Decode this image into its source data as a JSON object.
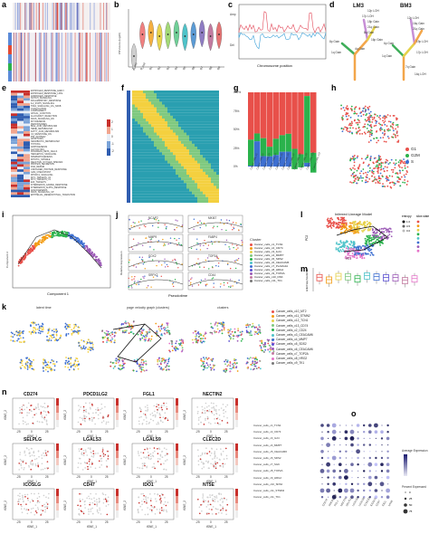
{
  "panels": {
    "a": {
      "letter": "a"
    },
    "b": {
      "letter": "b",
      "ylabel": "CNVscore (log10)",
      "x_labels": [
        "T_cell",
        "B_cell",
        "B1",
        "B2",
        "B3",
        "B4",
        "B5",
        "B6",
        "B7",
        "B8",
        "B9"
      ]
    },
    "c": {
      "letter": "c",
      "amp_label": "Amp",
      "del_label": "Del",
      "xlabel": "Chromosome position"
    },
    "d": {
      "letter": "d",
      "titles": [
        "LM3",
        "BM3"
      ],
      "lm3_events": [
        "1q Gain",
        "8p Gain",
        "16p Gain",
        "4q Gain",
        "17p LOH",
        "18p Gain",
        "12p LOH",
        "21q Gain",
        "8q Gain"
      ],
      "bm3_events": [
        "1q Gain",
        "6p Gain",
        "19p LOH",
        "7q Gain",
        "12p LOH",
        "16q Gain",
        "21q Gain",
        "17p LOH",
        "14q LOH"
      ]
    },
    "e": {
      "letter": "e",
      "rows": [
        "ESTROGEN_RESPONSE_EARLY",
        "ESTROGEN_RESPONSE_LATE",
        "ANDROGEN_RESPONSE",
        "NOTCH_SIGNALING",
        "INFLAMMATORY_RESPONSE",
        "IL2_STAT5_SIGNALING",
        "TNFA_SIGNALING_VIA_NFKB",
        "COAGULATION",
        "COMPLEMENT",
        "APICAL_JUNCTION",
        "ALLOGRAFT_REJECTION",
        "KRAS_SIGNALING_DN",
        "MYOGENESIS",
        "PEROXISOMES",
        "BILE_ACID_METABOLISM",
        "HEME_METABOLISM",
        "FATTY_ACID_METABOLISM",
        "UV_RESPONSE_DN",
        "P53_PATHWAY",
        "APOPTOSIS",
        "XENOBIOTIC_METABOLISM",
        "HYPOXIA",
        "ADIPOGENESIS",
        "GLYCOLYSIS",
        "PANCREAS_BETA_CELLS",
        "HEDGEHOG_SIGNALING",
        "SPERMATOGENESIS",
        "MITOTIC_SPINDLE",
        "REACTIVE_OXYGEN_SPECIES",
        "PROTEIN_SECRETION",
        "DNA_REPAIR",
        "UNFOLDED_PROTEIN_RESPONSE",
        "G2M_CHECKPOINT",
        "MTORC1_SIGNALING",
        "MYC_TARGETS_V2",
        "MYC_TARGETS_V1",
        "E2F_TARGETS",
        "INTERFERON_GAMMA_RESPONSE",
        "INTERFERON_ALPHA_RESPONSE",
        "ANGIOGENESIS",
        "KRAS_SIGNALING_UP",
        "EPITHELIAL_MESENCHYMAL_TRANSITION"
      ],
      "scale": [
        "2",
        "1",
        "0",
        "-1",
        "-2"
      ]
    },
    "f": {
      "letter": "f"
    },
    "g": {
      "letter": "g",
      "y_ticks": [
        "100%",
        "75%",
        "50%",
        "25%",
        "0%"
      ],
      "categories": [
        "Cancer_cells_c1",
        "Cancer_cells_c2",
        "Cancer_cells_c3",
        "Cancer_cells_c4",
        "Cancer_cells_c5",
        "Cancer_cells_c6",
        "Cancer_cells_c7",
        "Cancer_cells_c8",
        "Cancer_cells_c9",
        "Cancer_cells_c10",
        "Cancer_cells_c11"
      ]
    },
    "h": {
      "letter": "h",
      "legend": [
        {
          "name": "G1",
          "color": "#e8504a"
        },
        {
          "name": "G2M",
          "color": "#2ab24c"
        },
        {
          "name": "S",
          "color": "#3d6fd1"
        }
      ]
    },
    "i": {
      "letter": "i",
      "xlabel": "Component 1",
      "ylabel": "Component 2"
    },
    "j": {
      "letter": "j",
      "genes": [
        "NCAP2",
        "MKI67",
        "MMP9",
        "FABP4",
        "SOX2",
        "TOP2A",
        "SRPX2",
        "CD44"
      ],
      "xlabel": "Pseudotime",
      "ylabel": "Relative Expression",
      "legend_title": "Cluster",
      "legend": [
        "Cancer_cells_c1_TCN1",
        "Cancer_cells_c2_CD74",
        "Cancer_cells_c3_IL24",
        "Cancer_cells_c4_MMP7",
        "Cancer_cells_c5_SDS2",
        "Cancer_cells_c6_CEACAM6",
        "Cancer_cells_c7_PLA2G2A",
        "Cancer_cells_c8_HRG2",
        "Cancer_cells_c9_TOP2A",
        "Cancer_cells_c10_DSK",
        "Cancer_cells_c11_TK1"
      ]
    },
    "l": {
      "letter": "l",
      "title": "Inferred Lineage Model",
      "xlabel": "PC1",
      "ylabel": "PC2",
      "legend_entropy": "entropy",
      "legend_slice": "slice.states",
      "entropy_vals": [
        "1.0",
        "0.5",
        "0.0"
      ]
    },
    "m": {
      "letter": "m",
      "ylabel": "scEntropy bootstrap"
    },
    "k": {
      "letter": "k",
      "titles": [
        "latent time",
        "page velocity graph (clusters)",
        "clusters"
      ],
      "legend": [
        "Cancer_cells_c10_MT2",
        "Cancer_cells_c11_STMN2",
        "Cancer_cells_c12_TCN1",
        "Cancer_cells_c13_CD74",
        "Cancer_cells_c2_CD24",
        "Cancer_cells_c3_CEACAM6",
        "Cancer_cells_c4_MMP7",
        "Cancer_cells_c5_SDS2",
        "Cancer_cells_c6_CEACAM6",
        "Cancer_cells_c7_TOP2A",
        "Cancer_cells_c8_HRG2",
        "Cancer_cells_c9_TK1"
      ]
    },
    "n": {
      "letter": "n",
      "genes": [
        "CD274",
        "PDCD1LG2",
        "FGL1",
        "NECTIN2",
        "SELPLG",
        "LGALS3",
        "LGALS9",
        "CLEC2D",
        "ICOSLG",
        "CD47",
        "IDO1",
        "NT5E"
      ],
      "xlabel": "tSNE_1",
      "ylabel": "tSNE_2",
      "ticks": [
        "-25",
        "0",
        "25"
      ]
    },
    "o": {
      "letter": "o",
      "rows": [
        "Cancer_cells_c1_TCN1",
        "Cancer_cells_c2_CD74",
        "Cancer_cells_c3_IL24",
        "Cancer_cells_c4_MMP7",
        "Cancer_cells_c5_CEACAM6",
        "Cancer_cells_c6_SDS2",
        "Cancer_cells_c7_SGK",
        "Cancer_cells_c8_TOP2A",
        "Cancer_cells_c9_HRG2",
        "Cancer_cells_c10_SDS2",
        "Cancer_cells_c11_STMN2",
        "Cancer_cells_c11_TK1"
      ],
      "cols": [
        "CD274",
        "PDCD1LG2",
        "FGL1",
        "NECTIN2",
        "SELPLG",
        "LGALS3",
        "LGALS9",
        "CLEC2D",
        "ICOSLG",
        "CD47",
        "IDO1",
        "NT5E"
      ],
      "legend_avg": "Average Expression",
      "legend_pct": "Percent Expressed",
      "pct_vals": [
        "0",
        "25",
        "50",
        "75"
      ]
    }
  },
  "colors": {
    "red": "#d7301f",
    "blue": "#2b5fb0",
    "green": "#2ab24c",
    "orange": "#f39c12",
    "purple": "#7b3fa0"
  }
}
